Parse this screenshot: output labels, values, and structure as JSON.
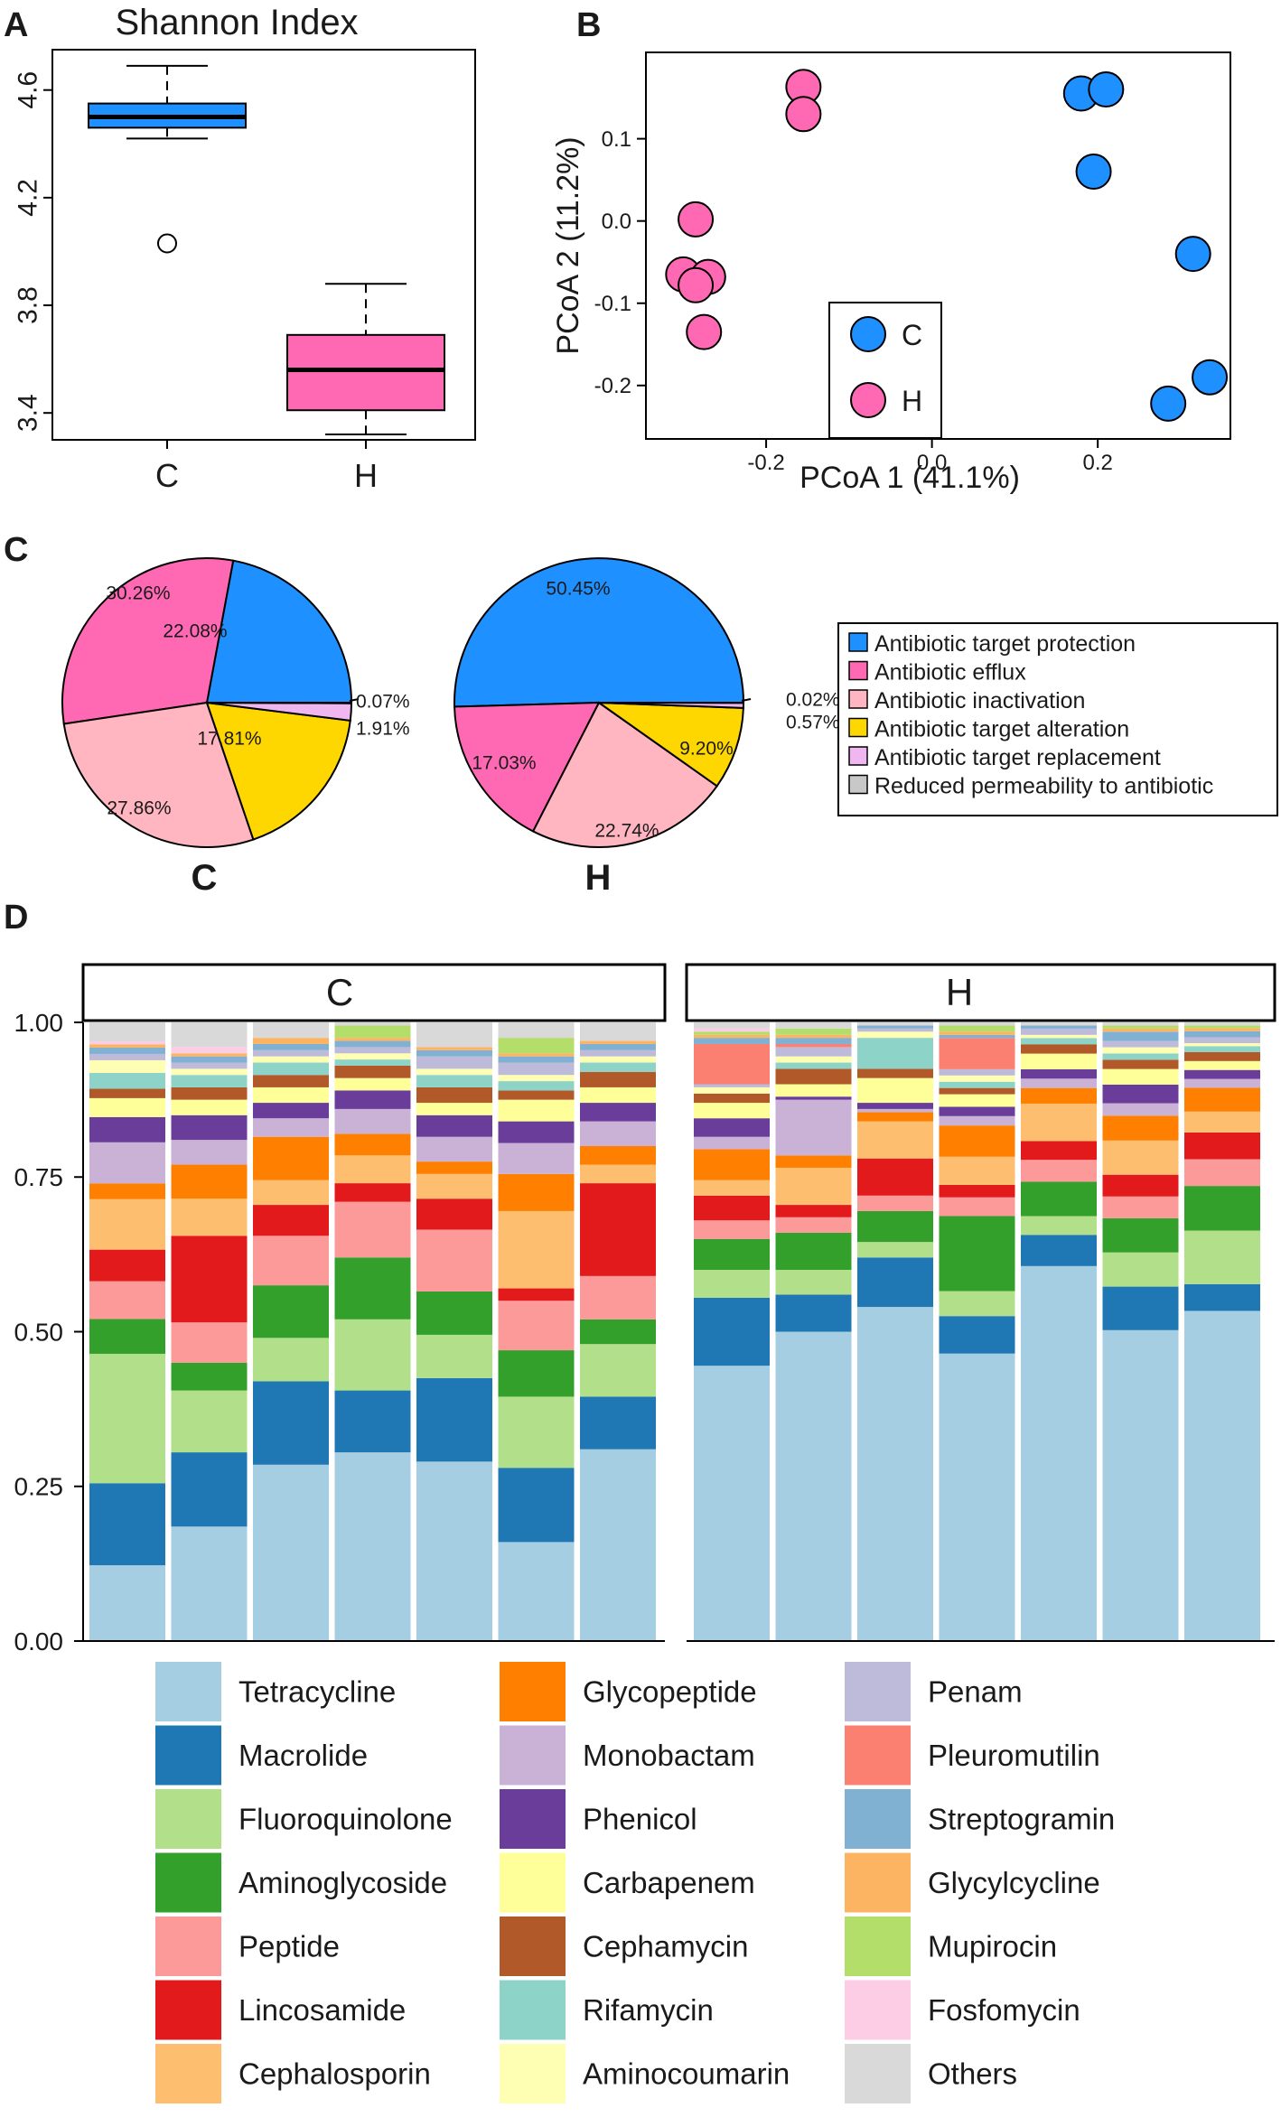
{
  "figure": {
    "panel_labels": {
      "A": "A",
      "B": "B",
      "C": "C",
      "D": "D"
    }
  },
  "colors": {
    "C": "#1e90ff",
    "H": "#ff69b4",
    "pie": [
      "#1e90ff",
      "#ff69b4",
      "#ffb6c1",
      "#ffd700",
      "#f0b6f0",
      "#c8c8c8"
    ],
    "classes": [
      "#a6cee3",
      "#1f78b4",
      "#b2df8a",
      "#33a02c",
      "#fb9a99",
      "#e31a1c",
      "#fdbf6f",
      "#ff7f00",
      "#cab2d6",
      "#6a3d9a",
      "#ffff99",
      "#b15928",
      "#8dd3c7",
      "#ffffb3",
      "#bebada",
      "#fb8072",
      "#80b1d3",
      "#fdb462",
      "#b3de69",
      "#fccde5",
      "#d9d9d9"
    ]
  },
  "chart_data": [
    {
      "panel": "A",
      "type": "box",
      "title": "Shannon Index",
      "categories": [
        "C",
        "H"
      ],
      "ylim": [
        3.3,
        4.75
      ],
      "yticks": [
        3.4,
        3.8,
        4.2,
        4.6
      ],
      "ytick_labels": [
        "3.4",
        "3.8",
        "4.2",
        "4.6"
      ],
      "boxes": [
        {
          "name": "C",
          "whisker_low": 4.42,
          "q1": 4.46,
          "median": 4.5,
          "q3": 4.55,
          "whisker_high": 4.69,
          "outliers": [
            4.03
          ]
        },
        {
          "name": "H",
          "whisker_low": 3.32,
          "q1": 3.41,
          "median": 3.56,
          "q3": 3.69,
          "whisker_high": 3.88,
          "outliers": []
        }
      ]
    },
    {
      "panel": "B",
      "type": "scatter",
      "xlabel": "PCoA 1 (41.1%)",
      "ylabel": "PCoA 2 (11.2%)",
      "xlim": [
        -0.345,
        0.36
      ],
      "ylim": [
        -0.265,
        0.205
      ],
      "xticks": [
        -0.2,
        0.0,
        0.2
      ],
      "xtick_labels": [
        "-0.2",
        "0.0",
        "0.2"
      ],
      "yticks": [
        -0.2,
        -0.1,
        0.0,
        0.1
      ],
      "ytick_labels": [
        "-0.2",
        "-0.1",
        "0.0",
        "0.1"
      ],
      "legend": [
        "C",
        "H"
      ],
      "series": [
        {
          "name": "C",
          "points": [
            [
              0.18,
              0.155
            ],
            [
              0.21,
              0.16
            ],
            [
              0.195,
              0.06
            ],
            [
              0.315,
              -0.04
            ],
            [
              0.335,
              -0.19
            ],
            [
              0.285,
              -0.222
            ]
          ]
        },
        {
          "name": "H",
          "points": [
            [
              -0.155,
              0.163
            ],
            [
              -0.155,
              0.13
            ],
            [
              -0.285,
              0.002
            ],
            [
              -0.3,
              -0.065
            ],
            [
              -0.27,
              -0.068
            ],
            [
              -0.285,
              -0.078
            ],
            [
              -0.275,
              -0.135
            ]
          ]
        }
      ]
    },
    {
      "panel": "C",
      "type": "pie",
      "legend": [
        "Antibiotic target protection",
        "Antibiotic efflux",
        "Antibiotic inactivation",
        "Antibiotic target alteration",
        "Antibiotic target replacement",
        "Reduced permeability to antibiotic"
      ],
      "pies": [
        {
          "name": "C",
          "values": [
            22.08,
            30.26,
            27.86,
            17.81,
            1.91,
            0.07
          ],
          "labels": [
            "22.08%",
            "30.26%",
            "27.86%",
            "17.81%",
            "1.91%",
            "0.07%"
          ]
        },
        {
          "name": "H",
          "values": [
            50.45,
            17.03,
            22.74,
            9.2,
            0.57,
            0.02
          ],
          "labels": [
            "50.45%",
            "17.03%",
            "22.74%",
            "9.20%",
            "0.57%",
            "0.02%"
          ]
        }
      ]
    },
    {
      "panel": "D",
      "type": "stacked-bar",
      "facets": [
        "C",
        "H"
      ],
      "ylim": [
        0,
        1
      ],
      "yticks": [
        0,
        0.25,
        0.5,
        0.75,
        1.0
      ],
      "ytick_labels": [
        "0.00",
        "0.25",
        "0.50",
        "0.75",
        "1.00"
      ],
      "classes": [
        "Tetracycline",
        "Macrolide",
        "Fluoroquinolone",
        "Aminoglycoside",
        "Peptide",
        "Lincosamide",
        "Cephalosporin",
        "Glycopeptide",
        "Monobactam",
        "Phenicol",
        "Carbapenem",
        "Cephamycin",
        "Rifamycin",
        "Aminocoumarin",
        "Penam",
        "Pleuromutilin",
        "Streptogramin",
        "Glycylcycline",
        "Mupirocin",
        "Fosfomycin",
        "Others"
      ],
      "samples": {
        "C": [
          [
            0.12,
            0.13,
            0.205,
            0.055,
            0.06,
            0.05,
            0.08,
            0.025,
            0.065,
            0.04,
            0.03,
            0.015,
            0.025,
            0.02,
            0.01,
            0.0,
            0.01,
            0.005,
            0.0,
            0.005,
            0.03
          ],
          [
            0.185,
            0.12,
            0.1,
            0.045,
            0.065,
            0.14,
            0.06,
            0.055,
            0.04,
            0.04,
            0.025,
            0.02,
            0.02,
            0.01,
            0.01,
            0.0,
            0.01,
            0.005,
            0.0,
            0.01,
            0.04
          ],
          [
            0.285,
            0.135,
            0.07,
            0.085,
            0.08,
            0.05,
            0.04,
            0.07,
            0.03,
            0.025,
            0.025,
            0.02,
            0.02,
            0.01,
            0.01,
            0.0,
            0.01,
            0.01,
            0.0,
            0.0,
            0.025
          ],
          [
            0.305,
            0.1,
            0.115,
            0.1,
            0.09,
            0.03,
            0.045,
            0.035,
            0.04,
            0.03,
            0.02,
            0.02,
            0.01,
            0.01,
            0.01,
            0.0,
            0.01,
            0.005,
            0.02,
            0.0,
            0.005
          ],
          [
            0.29,
            0.135,
            0.07,
            0.07,
            0.1,
            0.05,
            0.04,
            0.02,
            0.04,
            0.035,
            0.02,
            0.025,
            0.02,
            0.01,
            0.02,
            0.0,
            0.01,
            0.005,
            0.0,
            0.0,
            0.04
          ],
          [
            0.16,
            0.12,
            0.115,
            0.075,
            0.08,
            0.02,
            0.125,
            0.06,
            0.05,
            0.035,
            0.035,
            0.015,
            0.015,
            0.01,
            0.02,
            0.0,
            0.01,
            0.005,
            0.025,
            0.0,
            0.025
          ],
          [
            0.31,
            0.085,
            0.085,
            0.04,
            0.07,
            0.15,
            0.03,
            0.03,
            0.04,
            0.03,
            0.025,
            0.025,
            0.015,
            0.01,
            0.01,
            0.0,
            0.01,
            0.005,
            0.0,
            0.0,
            0.03
          ]
        ],
        "H": [
          [
            0.445,
            0.11,
            0.045,
            0.05,
            0.03,
            0.04,
            0.025,
            0.05,
            0.02,
            0.03,
            0.025,
            0.015,
            0.0,
            0.01,
            0.005,
            0.065,
            0.01,
            0.005,
            0.005,
            0.005,
            0.01
          ],
          [
            0.5,
            0.06,
            0.04,
            0.06,
            0.025,
            0.02,
            0.06,
            0.02,
            0.09,
            0.005,
            0.02,
            0.025,
            0.01,
            0.01,
            0.015,
            0.005,
            0.01,
            0.005,
            0.01,
            0.0,
            0.01
          ],
          [
            0.54,
            0.08,
            0.025,
            0.05,
            0.025,
            0.06,
            0.06,
            0.015,
            0.005,
            0.01,
            0.04,
            0.015,
            0.05,
            0.01,
            0.005,
            0.0,
            0.005,
            0.0,
            0.0,
            0.0,
            0.005
          ],
          [
            0.46,
            0.06,
            0.04,
            0.12,
            0.03,
            0.02,
            0.045,
            0.05,
            0.015,
            0.015,
            0.02,
            0.01,
            0.01,
            0.01,
            0.01,
            0.05,
            0.005,
            0.005,
            0.01,
            0.0,
            0.005
          ],
          [
            0.6,
            0.05,
            0.03,
            0.055,
            0.035,
            0.03,
            0.06,
            0.025,
            0.015,
            0.015,
            0.025,
            0.015,
            0.01,
            0.005,
            0.01,
            0.0,
            0.005,
            0.0,
            0.0,
            0.0,
            0.005
          ],
          [
            0.5,
            0.07,
            0.055,
            0.055,
            0.035,
            0.035,
            0.055,
            0.04,
            0.02,
            0.03,
            0.025,
            0.015,
            0.01,
            0.01,
            0.01,
            0.0,
            0.015,
            0.005,
            0.005,
            0.0,
            0.005
          ],
          [
            0.555,
            0.045,
            0.09,
            0.075,
            0.045,
            0.045,
            0.035,
            0.04,
            0.015,
            0.015,
            0.015,
            0.015,
            0.01,
            0.005,
            0.01,
            0.0,
            0.01,
            0.005,
            0.005,
            0.0,
            0.005
          ]
        ]
      }
    }
  ]
}
